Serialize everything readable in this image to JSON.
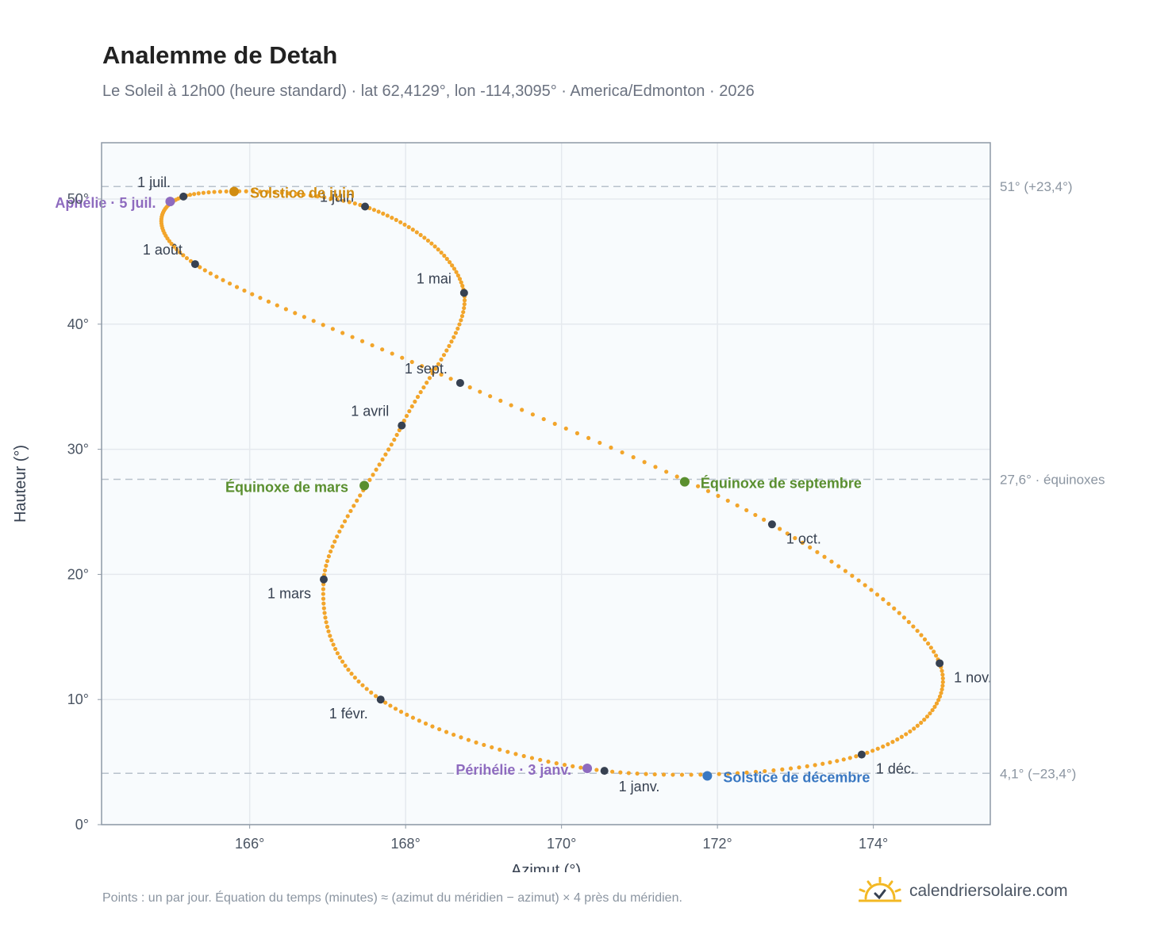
{
  "header": {
    "title": "Analemme de Detah",
    "subtitle": "Le Soleil à 12h00 (heure standard) · lat 62,4129°, lon -114,3095° · America/Edmonton · 2026"
  },
  "footer": {
    "note": "Points : un par jour. Équation du temps (minutes) ≈ (azimut du méridien − azimut) × 4 près du méridien.",
    "brand": "calendriersolaire.com",
    "brand_icon": "sun-check-icon"
  },
  "colors": {
    "curve": "#f2a52b",
    "month_marker": "#374151",
    "aphelion": "#8e6bbf",
    "perihelion": "#8e6bbf",
    "june_solstice": "#d18c10",
    "december_solstice": "#3a78c2",
    "equinox": "#5a8f2f",
    "grid": "#e5e9ee",
    "plot_bg": "#f8fbfd",
    "reference_line": "#b8c2cc",
    "brand_sun": "#f3b824"
  },
  "chart_data": {
    "type": "scatter",
    "xlabel": "Azimut (°)",
    "ylabel": "Hauteur (°)",
    "xlim": [
      164.1,
      175.5
    ],
    "ylim": [
      0,
      54.5
    ],
    "x_ticks": [
      166,
      168,
      170,
      172,
      174
    ],
    "x_tick_labels": [
      "166°",
      "168°",
      "170°",
      "172°",
      "174°"
    ],
    "y_ticks": [
      0,
      10,
      20,
      30,
      40,
      50
    ],
    "y_tick_labels": [
      "0°",
      "10°",
      "20°",
      "30°",
      "40°",
      "50°"
    ],
    "grid": true,
    "reference_lines": [
      {
        "y": 51.0,
        "label": "51° (+23,4°)"
      },
      {
        "y": 27.6,
        "label": "27,6° · équinoxes"
      },
      {
        "y": 4.1,
        "label": "4,1° (−23,4°)"
      }
    ],
    "months": [
      {
        "label": "1 janv.",
        "azimuth": 170.55,
        "altitude": 4.3
      },
      {
        "label": "1 févr.",
        "azimuth": 167.68,
        "altitude": 10.0
      },
      {
        "label": "1 mars",
        "azimuth": 166.95,
        "altitude": 19.6
      },
      {
        "label": "1 avril",
        "azimuth": 167.95,
        "altitude": 31.9
      },
      {
        "label": "1 mai",
        "azimuth": 168.75,
        "altitude": 42.5
      },
      {
        "label": "1 juin",
        "azimuth": 167.48,
        "altitude": 49.4
      },
      {
        "label": "1 juil.",
        "azimuth": 165.15,
        "altitude": 50.2
      },
      {
        "label": "1 août",
        "azimuth": 165.3,
        "altitude": 44.8
      },
      {
        "label": "1 sept.",
        "azimuth": 168.7,
        "altitude": 35.3
      },
      {
        "label": "1 oct.",
        "azimuth": 172.7,
        "altitude": 24.0
      },
      {
        "label": "1 nov.",
        "azimuth": 174.85,
        "altitude": 12.9
      },
      {
        "label": "1 déc.",
        "azimuth": 173.85,
        "altitude": 5.6
      }
    ],
    "events": [
      {
        "label": "Aphélie · 5 juil.",
        "azimuth": 164.98,
        "altitude": 49.8
      },
      {
        "label": "Solstice de juin",
        "azimuth": 165.8,
        "altitude": 50.6
      },
      {
        "label": "Équinoxe de mars",
        "azimuth": 167.47,
        "altitude": 27.1
      },
      {
        "label": "Équinoxe de septembre",
        "azimuth": 171.58,
        "altitude": 27.4
      },
      {
        "label": "Périhélie · 3 janv.",
        "azimuth": 170.33,
        "altitude": 4.5
      },
      {
        "label": "Solstice de décembre",
        "azimuth": 171.87,
        "altitude": 3.9
      }
    ]
  }
}
